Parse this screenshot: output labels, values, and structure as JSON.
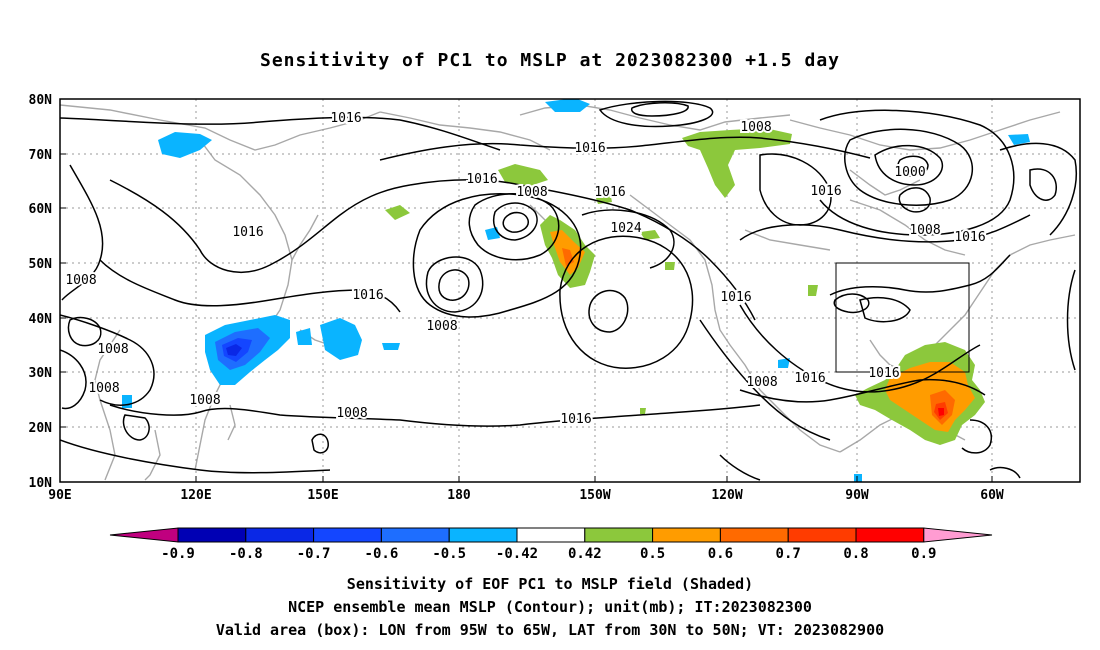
{
  "title": "Sensitivity of PC1 to MSLP at 2023082300 +1.5 day",
  "lat_labels": [
    "80N",
    "70N",
    "60N",
    "50N",
    "40N",
    "30N",
    "20N",
    "10N"
  ],
  "lon_labels": [
    "90E",
    "120E",
    "150E",
    "180",
    "150W",
    "120W",
    "90W",
    "60W"
  ],
  "contour_labels": [
    "1016",
    "1016",
    "1008",
    "1016",
    "1008",
    "1016",
    "1024",
    "1016",
    "1016",
    "1008",
    "1008",
    "1000",
    "1008",
    "1016",
    "1016",
    "1016",
    "1008",
    "1008",
    "1008",
    "1008",
    "1016",
    "1016",
    "1008",
    "1016",
    "1016"
  ],
  "colorbar": {
    "labels": [
      "-0.9",
      "-0.8",
      "-0.7",
      "-0.6",
      "-0.5",
      "-0.42",
      "0.42",
      "0.5",
      "0.6",
      "0.7",
      "0.8",
      "0.9"
    ],
    "colors": [
      "#c0007f",
      "#0000b4",
      "#0a28e6",
      "#1446ff",
      "#1e6eff",
      "#0ab4ff",
      "#ffffff",
      "#8cc83c",
      "#ff9c00",
      "#ff6a00",
      "#ff3c00",
      "#ff0000",
      "#ff9cd2"
    ]
  },
  "captions": [
    "Sensitivity of EOF PC1 to MSLP field (Shaded)",
    "NCEP ensemble mean MSLP (Contour); unit(mb); IT:2023082300",
    "Valid area (box): LON from 95W to 65W, LAT from 30N to 50N; VT: 2023082900"
  ]
}
